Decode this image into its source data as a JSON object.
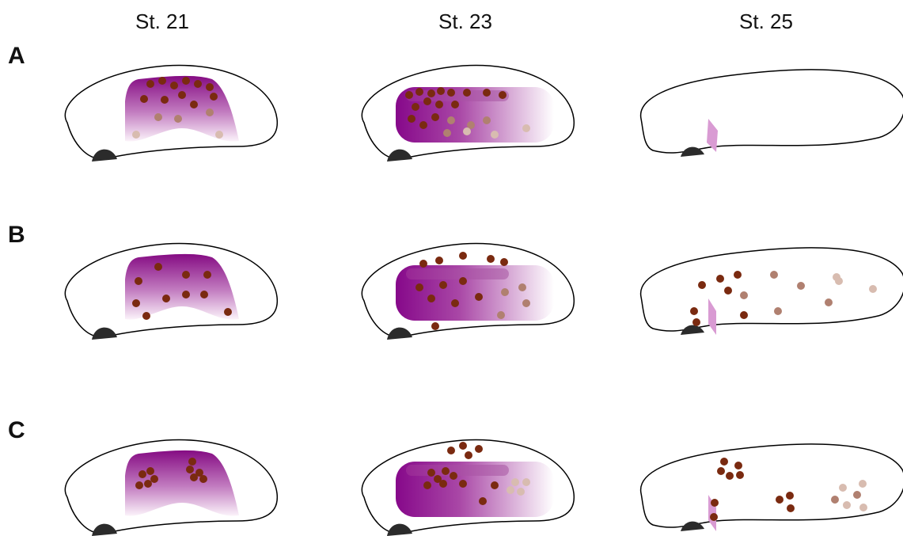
{
  "columns": [
    "St. 21",
    "St. 23",
    "St. 25"
  ],
  "rows": [
    "A",
    "B",
    "C"
  ]
}
